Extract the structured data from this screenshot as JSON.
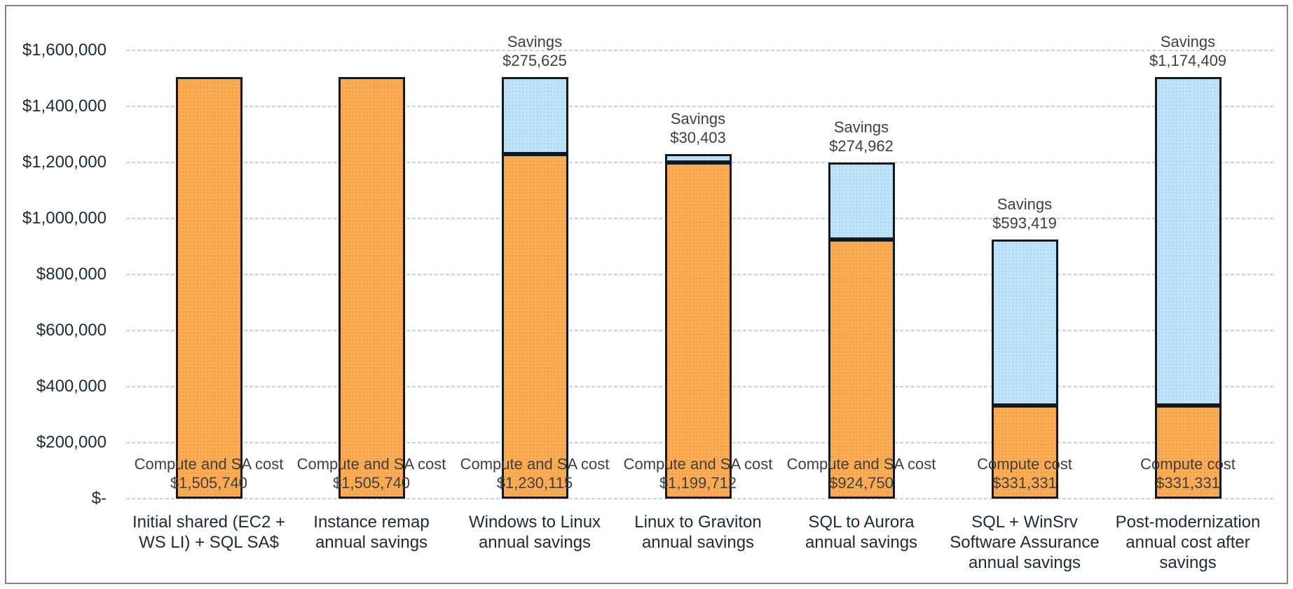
{
  "chart_data": {
    "type": "bar",
    "subtype": "stacked",
    "title": "",
    "legend": "none",
    "grid": true,
    "categories": [
      "Initial shared (EC2 + WS LI) + SQL SA$",
      "Instance remap annual savings",
      "Windows to Linux annual savings",
      "Linux to Graviton annual savings",
      "SQL to Aurora annual savings",
      "SQL + WinSrv Software Assurance annual savings",
      "Post-modernization annual cost after savings"
    ],
    "category_label_lines": [
      [
        "Initial shared (EC2 +",
        "WS LI) + SQL SA$"
      ],
      [
        "Instance remap",
        "annual savings"
      ],
      [
        "Windows to Linux",
        "annual savings"
      ],
      [
        "Linux to Graviton",
        "annual savings"
      ],
      [
        "SQL to Aurora",
        "annual savings"
      ],
      [
        "SQL + WinSrv",
        "Software Assurance",
        "annual savings"
      ],
      [
        "Post-modernization",
        "annual cost after",
        "savings"
      ]
    ],
    "series": [
      {
        "name": "Compute cost",
        "color": "#FBAD55",
        "pattern_dot_color": "#F0983C",
        "values": [
          1505740,
          1505740,
          1230115,
          1199712,
          924750,
          331331,
          331331
        ]
      },
      {
        "name": "Savings",
        "color": "#BFE3F8",
        "pattern_dot_color": "#A3D4EF",
        "values": [
          0,
          0,
          275625,
          30403,
          274962,
          593419,
          1174409
        ]
      }
    ],
    "bar_base_labels": [
      [
        "Compute and SA cost",
        "$1,505,740"
      ],
      [
        "Compute and SA cost",
        "$1,505,740"
      ],
      [
        "Compute and SA cost",
        "$1,230,115"
      ],
      [
        "Compute and SA cost",
        "$1,199,712"
      ],
      [
        "Compute and SA cost",
        "$924,750"
      ],
      [
        "Compute cost",
        "$331,331"
      ],
      [
        "Compute cost",
        "$331,331"
      ]
    ],
    "savings_labels": [
      null,
      null,
      [
        "Savings",
        "$275,625"
      ],
      [
        "Savings",
        "$30,403"
      ],
      [
        "Savings",
        "$274,962"
      ],
      [
        "Savings",
        "$593,419"
      ],
      [
        "Savings",
        "$1,174,409"
      ]
    ],
    "y_axis": {
      "min": 0,
      "max": 1600000,
      "step": 200000,
      "tick_labels_bottom_to_top": [
        "$-",
        "$200,000",
        "$400,000",
        "$600,000",
        "$800,000",
        "$1,000,000",
        "$1,200,000",
        "$1,400,000",
        "$1,600,000"
      ]
    },
    "colors": {
      "grid_line": "#c9cfeb",
      "bar_border": "#10191f",
      "axis_text": "#1c2b3a",
      "label_text": "#3f3f3f",
      "frame_border": "#848484",
      "background": "#ffffff"
    }
  }
}
